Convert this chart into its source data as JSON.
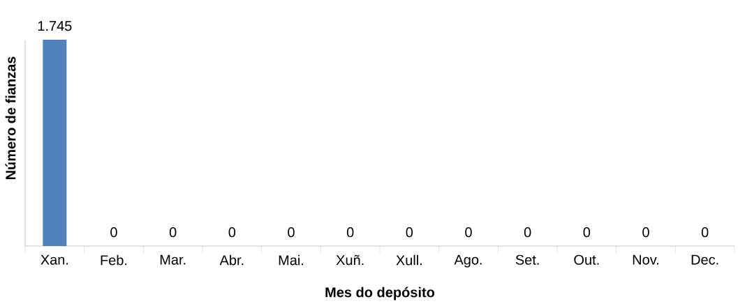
{
  "chart_data": {
    "type": "bar",
    "xlabel": "Mes do depósito",
    "ylabel": "Número de fianzas",
    "categories": [
      "Xan.",
      "Feb.",
      "Mar.",
      "Abr.",
      "Mai.",
      "Xuñ.",
      "Xull.",
      "Ago.",
      "Set.",
      "Out.",
      "Nov.",
      "Dec."
    ],
    "values": [
      1745,
      0,
      0,
      0,
      0,
      0,
      0,
      0,
      0,
      0,
      0,
      0
    ],
    "value_labels": [
      "1.745",
      "0",
      "0",
      "0",
      "0",
      "0",
      "0",
      "0",
      "0",
      "0",
      "0",
      "0"
    ],
    "color": "#4f81bd"
  }
}
